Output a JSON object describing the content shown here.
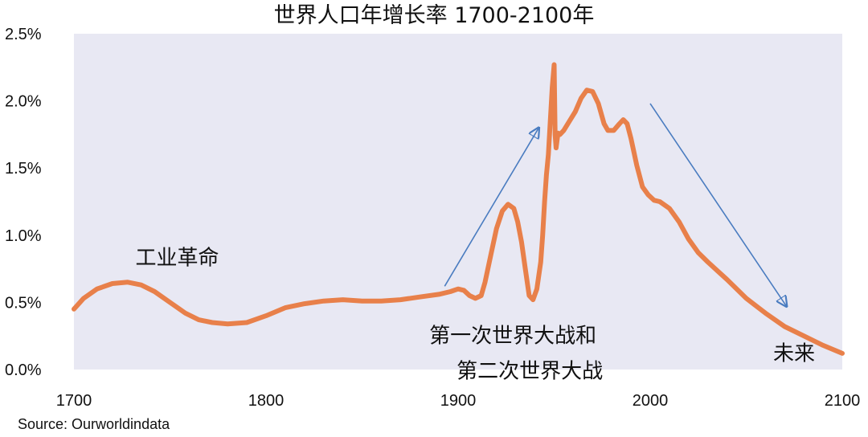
{
  "chart_data": {
    "type": "line",
    "title": "世界人口年增长率 1700-2100年",
    "xlim": [
      1700,
      2100
    ],
    "ylim": [
      0,
      2.5
    ],
    "y_unit": "%",
    "x_ticks": [
      1700,
      1800,
      1900,
      2000,
      2100
    ],
    "y_ticks": [
      0,
      0.5,
      1.0,
      1.5,
      2.0,
      2.5
    ],
    "y_tick_labels": [
      "0.0%",
      "0.5%",
      "1.0%",
      "1.5%",
      "2.0%",
      "2.5%"
    ],
    "grid": false,
    "plot_background": "#e8e8f3",
    "series": [
      {
        "color": "#e8804a",
        "x": [
          1700,
          1705,
          1712,
          1720,
          1728,
          1735,
          1742,
          1750,
          1758,
          1765,
          1772,
          1780,
          1790,
          1800,
          1810,
          1820,
          1830,
          1840,
          1850,
          1860,
          1870,
          1880,
          1890,
          1896,
          1900,
          1903,
          1906,
          1909,
          1912,
          1914,
          1917,
          1920,
          1923,
          1926,
          1929,
          1931,
          1933,
          1935,
          1937,
          1939,
          1941,
          1943,
          1944,
          1945,
          1946,
          1947,
          1948,
          1949,
          1950,
          1950.5,
          1951,
          1952,
          1953,
          1955,
          1958,
          1961,
          1964,
          1967,
          1970,
          1973,
          1976,
          1978,
          1981,
          1984,
          1986,
          1988,
          1990,
          1993,
          1996,
          1999,
          2002,
          2005,
          2010,
          2015,
          2020,
          2025,
          2030,
          2040,
          2050,
          2060,
          2070,
          2080,
          2090,
          2100
        ],
        "y": [
          0.45,
          0.53,
          0.6,
          0.64,
          0.65,
          0.63,
          0.58,
          0.5,
          0.42,
          0.37,
          0.35,
          0.34,
          0.35,
          0.4,
          0.46,
          0.49,
          0.51,
          0.52,
          0.51,
          0.51,
          0.52,
          0.54,
          0.56,
          0.58,
          0.6,
          0.59,
          0.55,
          0.53,
          0.55,
          0.65,
          0.85,
          1.05,
          1.18,
          1.23,
          1.2,
          1.1,
          0.95,
          0.75,
          0.55,
          0.52,
          0.6,
          0.8,
          1.0,
          1.25,
          1.45,
          1.6,
          1.85,
          2.1,
          2.27,
          1.75,
          1.65,
          1.76,
          1.75,
          1.78,
          1.85,
          1.92,
          2.02,
          2.08,
          2.07,
          1.98,
          1.83,
          1.78,
          1.78,
          1.83,
          1.86,
          1.83,
          1.72,
          1.52,
          1.36,
          1.3,
          1.26,
          1.25,
          1.2,
          1.1,
          0.97,
          0.87,
          0.8,
          0.67,
          0.53,
          0.42,
          0.32,
          0.25,
          0.18,
          0.12
        ]
      }
    ],
    "annotations": [
      {
        "text": "工业革命",
        "x": 1732,
        "y": 0.78
      },
      {
        "lines": [
          "第一次世界大战和",
          "第二次世界大战"
        ],
        "x": 1885,
        "y": 0.2
      },
      {
        "text": "未来",
        "x": 2064,
        "y": 0.07
      }
    ],
    "arrows": [
      {
        "color": "#4a7cc0",
        "from": [
          1893,
          0.62
        ],
        "to": [
          1942,
          1.8
        ]
      },
      {
        "color": "#4a7cc0",
        "from": [
          2000,
          1.98
        ],
        "to": [
          2071,
          0.47
        ]
      }
    ],
    "source": "Source: Ourworldindata"
  }
}
